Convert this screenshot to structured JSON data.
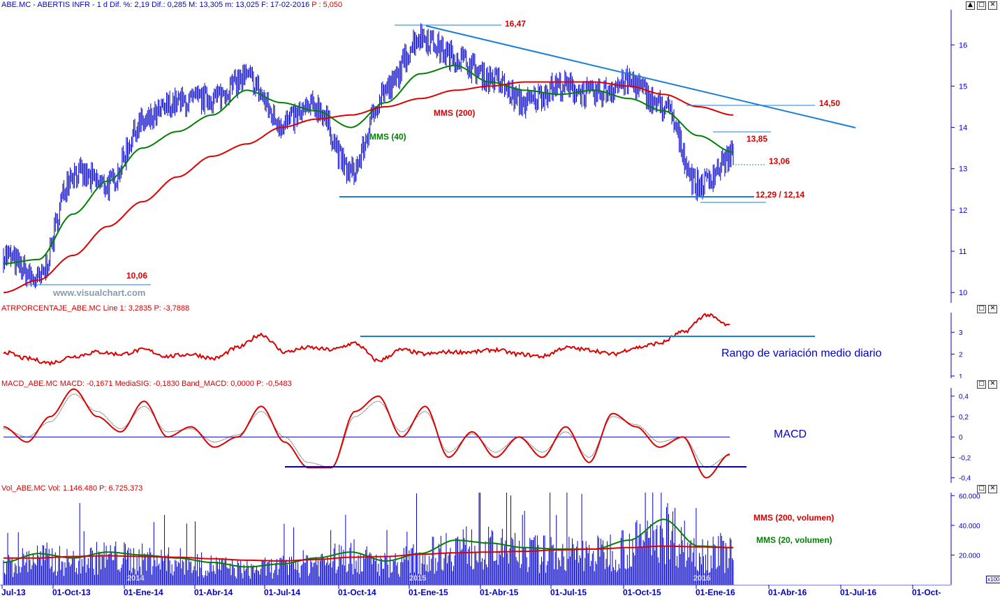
{
  "panels": {
    "price": {
      "header": "ABE.MC - ABERTIS INFR - 1 d Dif. %: 2,19 Dif.: 0,285 M: 13,305 m: 13,025 F: 17-02-2016 ",
      "header_p": "P : 5,050",
      "y_ticks": [
        "16",
        "15",
        "14",
        "13",
        "12",
        "11",
        "10"
      ],
      "annotations": {
        "high": "16,47",
        "low": "10,06",
        "mms200": "MMS (200)",
        "mms40": "MMS (40)",
        "res1": "14,50",
        "res2": "13,85",
        "res3": "13,06",
        "support": "12,29 / 12,14",
        "watermark": "www.visualchart.com"
      }
    },
    "atr": {
      "header": "ATRPORCENTAJE_ABE.MC Line 1: 3,2835 P: -3,7888",
      "y_ticks": [
        "3",
        "2",
        "1"
      ],
      "label": "Rango de variación medio diario"
    },
    "macd": {
      "header": "MACD_ABE.MC MACD: -0,1671 MediaSIG: -0,1830 Band_MACD: 0,0000 P: -0,5483",
      "y_ticks": [
        "0,4",
        "0,2",
        "0",
        "-0,2",
        "-0,4"
      ],
      "label": "MACD"
    },
    "volume": {
      "header": "Vol_ABE.MC Vol: 1.146.480 P: 6.725.373",
      "y_ticks": [
        "60.000",
        "40.000",
        "20.000"
      ],
      "scale_badge": "x100",
      "mms200_label": "MMS (200, volumen)",
      "mms20_label": "MMS (20, volumen)",
      "year_marks": [
        "2014",
        "2015",
        "2016"
      ]
    }
  },
  "x_axis": {
    "labels": [
      "Jul-13",
      "01-Oct-13",
      "01-Ene-14",
      "01-Abr-14",
      "01-Jul-14",
      "01-Oct-14",
      "01-Ene-15",
      "01-Abr-15",
      "01-Jul-15",
      "01-Oct-15",
      "01-Ene-16",
      "01-Abr-16",
      "01-Jul-16",
      "01-Oct-"
    ]
  },
  "window_buttons": [
    "▲",
    "□",
    "✕"
  ],
  "colors": {
    "price": "#0000cc",
    "mms200": "#dd0000",
    "mms40": "#008000",
    "trendline": "#1a7fd4",
    "annotation": "#d40000",
    "axis": "#0000cc"
  },
  "chart_data": [
    {
      "type": "line",
      "title": "ABE.MC - ABERTIS INFR - 1 d",
      "x": [
        "2013-07-01",
        "2013-08-15",
        "2013-10-01",
        "2013-12-01",
        "2014-01-15",
        "2014-03-01",
        "2014-04-15",
        "2014-06-01",
        "2014-07-15",
        "2014-09-01",
        "2014-10-15",
        "2014-12-01",
        "2015-01-15",
        "2015-03-01",
        "2015-04-15",
        "2015-06-01",
        "2015-07-15",
        "2015-09-01",
        "2015-10-15",
        "2015-12-01",
        "2016-01-15",
        "2016-02-17"
      ],
      "series": [
        {
          "name": "",
          "values": [
            10.9,
            10.3,
            12.9,
            12.6,
            14.1,
            14.6,
            14.7,
            15.2,
            14.1,
            14.5,
            12.9,
            14.9,
            16.2,
            15.7,
            15.2,
            14.6,
            15.0,
            14.8,
            15.1,
            14.5,
            12.6,
            13.3
          ]
        },
        {
          "name": "MMS (40)",
          "values": [
            10.7,
            10.8,
            11.9,
            12.7,
            13.5,
            13.9,
            14.3,
            14.9,
            14.6,
            14.4,
            14.0,
            14.6,
            15.3,
            15.5,
            15.1,
            14.9,
            14.8,
            14.9,
            14.7,
            14.4,
            13.8,
            13.4
          ]
        },
        {
          "name": "MMS (200)",
          "values": [
            10.0,
            10.3,
            10.9,
            11.6,
            12.2,
            12.8,
            13.3,
            13.6,
            14.0,
            14.2,
            14.3,
            14.5,
            14.7,
            14.9,
            15.0,
            15.1,
            15.1,
            15.1,
            15.0,
            14.8,
            14.5,
            14.3
          ]
        }
      ],
      "annotations": [
        "16,47",
        "10,06",
        "14,50",
        "13,85",
        "13,06",
        "12,29 / 12,14"
      ],
      "ylim": [
        9.75,
        16.85
      ]
    },
    {
      "type": "line",
      "title": "ATRPORCENTAJE_ABE.MC",
      "series": [
        {
          "name": "Line 1",
          "values": [
            2.1,
            1.8,
            1.6,
            1.9,
            2.1,
            2.0,
            2.2,
            1.9,
            2.0,
            1.8,
            2.3,
            2.9,
            2.1,
            2.3,
            2.2,
            2.5,
            1.7,
            2.2,
            2.0,
            2.1,
            2.1,
            2.2,
            2.0,
            1.9,
            2.3,
            2.2,
            2.0,
            2.3,
            2.5,
            3.0,
            3.8,
            3.3
          ]
        }
      ],
      "ylim": [
        0.9,
        3.9
      ]
    },
    {
      "type": "line",
      "title": "MACD_ABE.MC",
      "series": [
        {
          "name": "MACD",
          "values": [
            0.1,
            -0.05,
            0.2,
            0.47,
            0.2,
            0.05,
            0.35,
            0.0,
            0.1,
            -0.1,
            0.0,
            0.3,
            -0.05,
            -0.3,
            -0.3,
            0.25,
            0.4,
            0.0,
            0.3,
            -0.2,
            0.05,
            -0.2,
            0.0,
            -0.2,
            0.1,
            -0.25,
            0.23,
            0.1,
            -0.1,
            0.0,
            -0.4,
            -0.17
          ]
        },
        {
          "name": "MediaSIG",
          "values": [
            0.08,
            0.0,
            0.15,
            0.42,
            0.25,
            0.08,
            0.3,
            0.05,
            0.08,
            -0.05,
            0.02,
            0.25,
            0.0,
            -0.25,
            -0.3,
            0.2,
            0.35,
            0.05,
            0.25,
            -0.15,
            0.03,
            -0.15,
            0.0,
            -0.15,
            0.05,
            -0.2,
            0.2,
            0.12,
            -0.05,
            0.0,
            -0.3,
            -0.18
          ]
        }
      ],
      "ylim": [
        -0.45,
        0.48
      ]
    },
    {
      "type": "bar",
      "title": "Vol_ABE.MC",
      "series": [
        {
          "name": "MMS (200, volumen)",
          "values": [
            18000,
            18000,
            19000,
            19500,
            19000,
            18500,
            17500,
            16500,
            16000,
            17000,
            18500,
            19000,
            20500,
            21500,
            22000,
            22500,
            23500,
            24000,
            25000,
            26000,
            25500,
            25000
          ]
        },
        {
          "name": "MMS (20, volumen)",
          "values": [
            15000,
            21000,
            18000,
            22000,
            20000,
            18000,
            15000,
            12000,
            14000,
            18000,
            22000,
            16000,
            21000,
            30000,
            28000,
            25000,
            24000,
            24000,
            30000,
            44000,
            26000,
            25000
          ]
        }
      ],
      "ylim": [
        0,
        62000
      ]
    }
  ]
}
